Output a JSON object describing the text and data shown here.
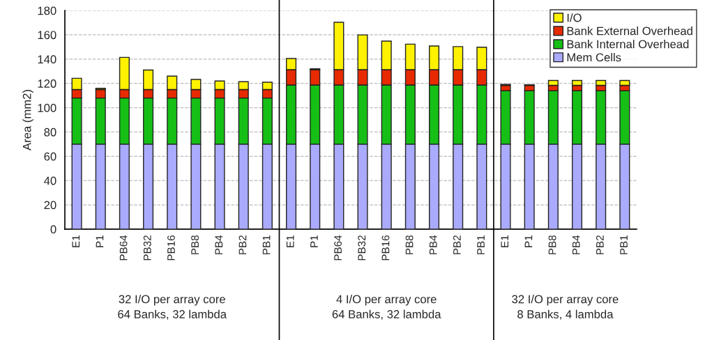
{
  "chart_data": {
    "type": "bar",
    "stacked": true,
    "ylabel": "Area (mm2)",
    "categories": [
      "E1",
      "P1",
      "PB64",
      "PB32",
      "PB16",
      "PB8",
      "PB4",
      "PB2",
      "PB1",
      "E1",
      "P1",
      "PB64",
      "PB32",
      "PB16",
      "PB8",
      "PB4",
      "PB2",
      "PB1",
      "E1",
      "P1",
      "PB8",
      "PB4",
      "PB2",
      "PB1"
    ],
    "series": [
      {
        "name": "Mem Cells",
        "color": "#aaaaff",
        "values": [
          70,
          70,
          70,
          70,
          70,
          70,
          70,
          70,
          70,
          70,
          70,
          70,
          70,
          70,
          70,
          70,
          70,
          70,
          70,
          70,
          70,
          70,
          70,
          70
        ]
      },
      {
        "name": "Bank Internal Overhead",
        "color": "#16bf16",
        "values": [
          38,
          38,
          38,
          38,
          38,
          38,
          38,
          38,
          38,
          48.7,
          48.7,
          48.7,
          48.7,
          48.7,
          48.7,
          48.7,
          48.7,
          48.7,
          44,
          44,
          44,
          44,
          44,
          44
        ]
      },
      {
        "name": "Bank External Overhead",
        "color": "#e82a00",
        "values": [
          7,
          7,
          7,
          7,
          7,
          7,
          7,
          7,
          7,
          12.6,
          12.6,
          12.6,
          12.6,
          12.6,
          12.6,
          12.6,
          12.6,
          12.6,
          4.4,
          4.4,
          4.4,
          4.4,
          4.4,
          4.4
        ]
      },
      {
        "name": "I/O",
        "color": "#fff200",
        "values": [
          9.2,
          1,
          26.4,
          16,
          11,
          8.3,
          7,
          6.4,
          6,
          9.2,
          0.8,
          39,
          28.6,
          23.5,
          21,
          19.5,
          19,
          18.5,
          0.8,
          0.5,
          4,
          4,
          4,
          4
        ]
      }
    ],
    "ylim": [
      0,
      180
    ],
    "yticks": [
      0,
      20,
      40,
      60,
      80,
      100,
      120,
      140,
      160,
      180
    ],
    "grid": "y",
    "legend": "top right",
    "annotations": [
      "32 I/O per array core\n64 Banks, 32 lambda",
      "4 I/O per array core\n64 Banks, 32 lambda",
      "32 I/O per array core\n8 Banks, 4 lambda"
    ]
  }
}
